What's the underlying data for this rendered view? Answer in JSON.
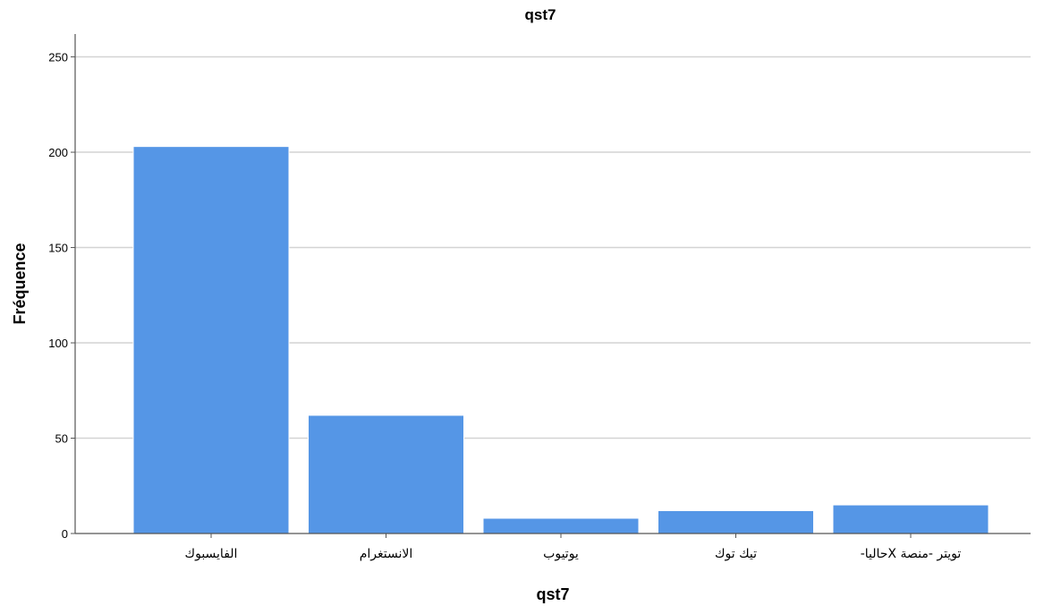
{
  "chart_data": {
    "type": "bar",
    "title": "qst7",
    "xlabel": "qst7",
    "ylabel": "Fréquence",
    "categories": [
      "الفايسبوك",
      "الانستغرام",
      "يوتيوب",
      "تيك توك",
      "تويتر -منصة Xحاليا-"
    ],
    "values": [
      203,
      62,
      8,
      12,
      15
    ],
    "ylim": [
      0,
      262
    ],
    "yticks": [
      0,
      50,
      100,
      150,
      200,
      250
    ],
    "grid": true,
    "bar_color": "#5596e6",
    "grid_color": "#d4d4d4",
    "axis_color": "#555555"
  }
}
